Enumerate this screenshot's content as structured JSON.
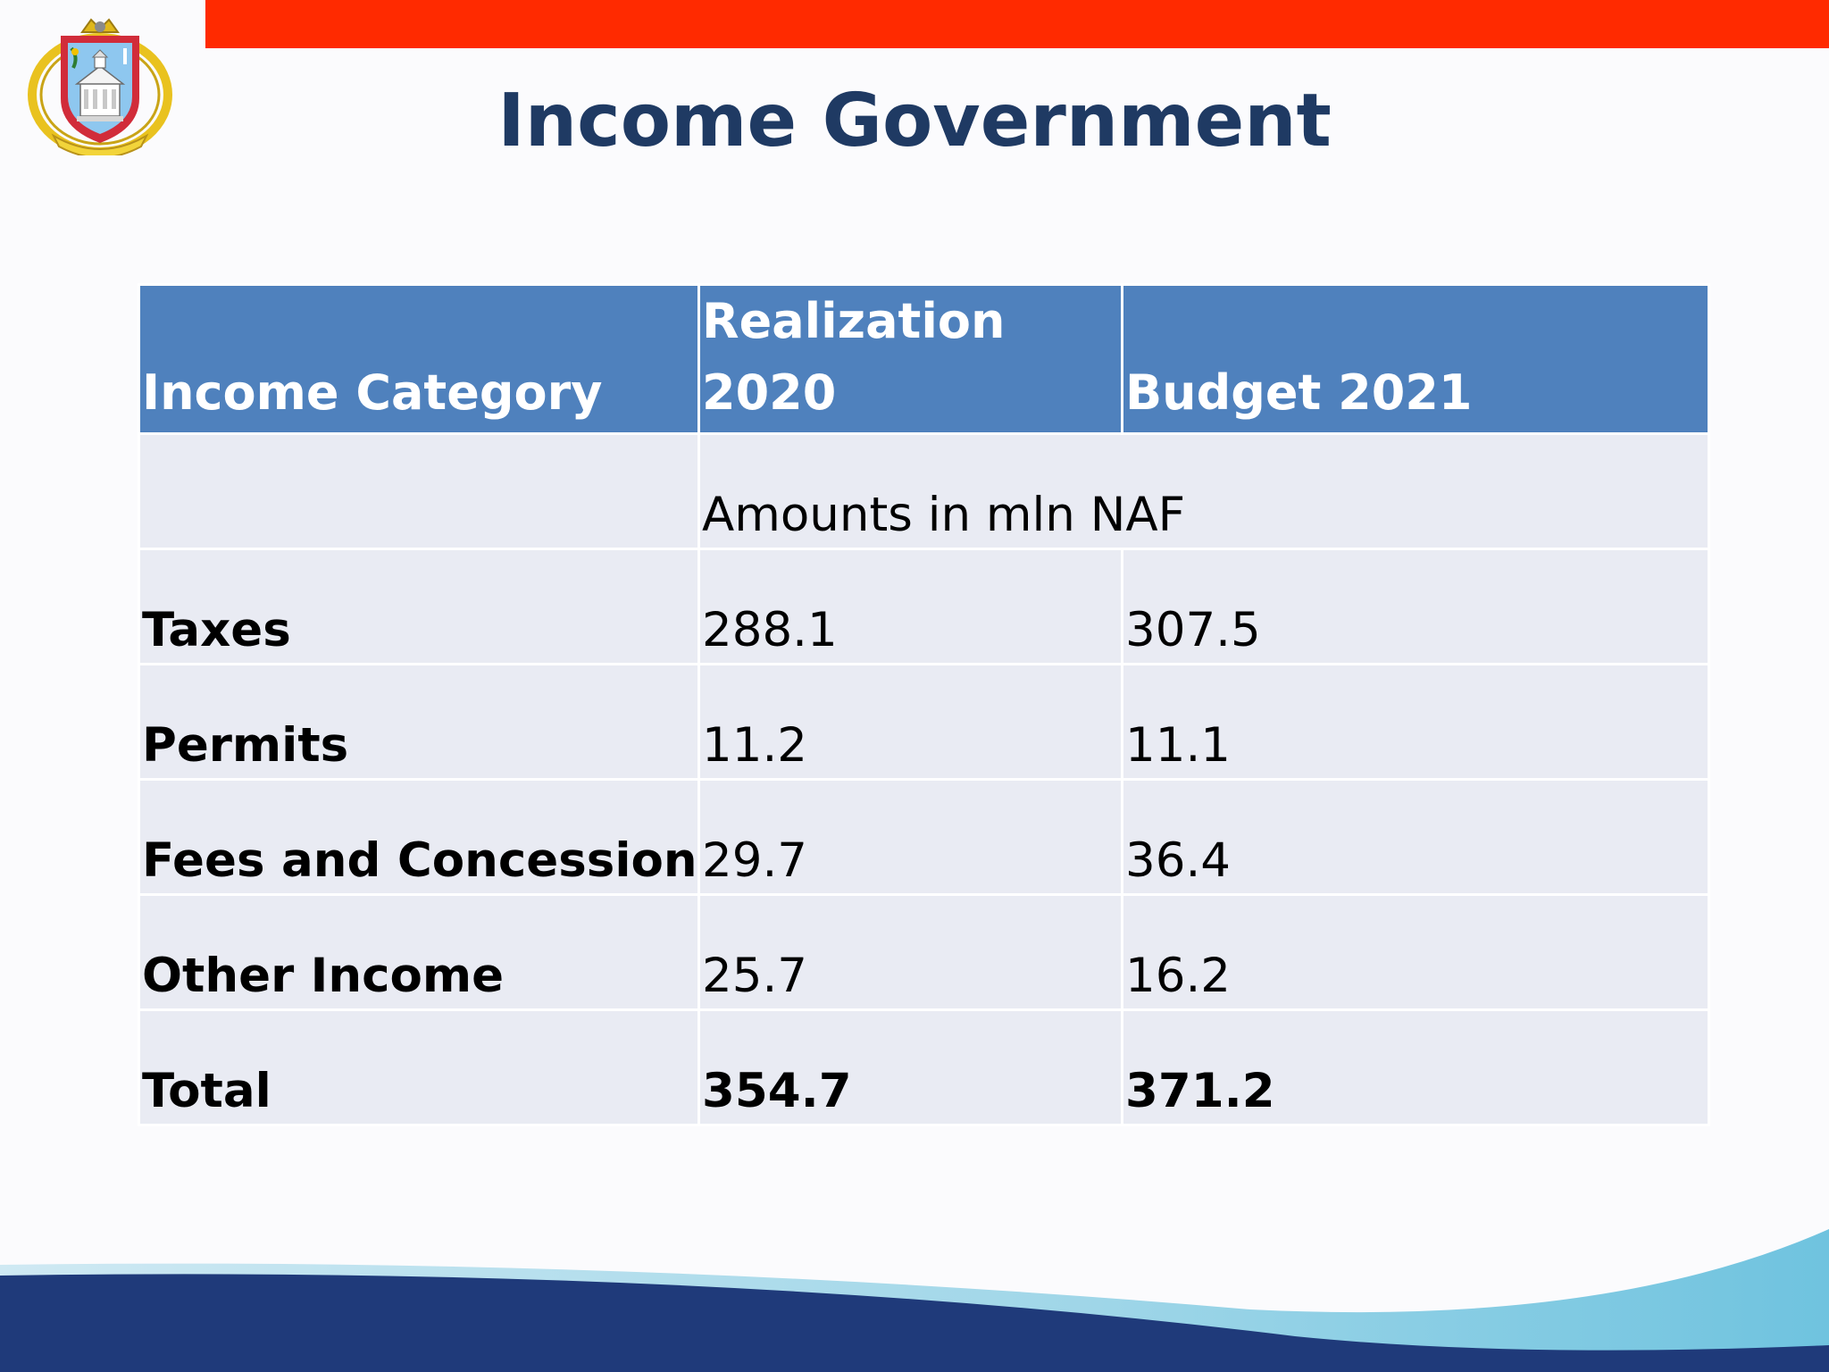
{
  "slide": {
    "title": "Income Government",
    "colors": {
      "top_bar": "#ff2a00",
      "title": "#1f3a63",
      "header_fill": "#4f81bd",
      "row_fill": "#e9ebf3",
      "wave_dark": "#1f3a7a",
      "wave_light": "#8fd0e6"
    },
    "logo": {
      "icon": "coat-of-arms-icon"
    }
  },
  "table": {
    "headers": {
      "category": "Income Category",
      "realization": "Realization 2020",
      "budget": "Budget 2021"
    },
    "units_note": "Amounts in mln NAF",
    "rows": [
      {
        "label": "Taxes",
        "realization": "288.1",
        "budget": "307.5"
      },
      {
        "label": "Permits",
        "realization": "11.2",
        "budget": "11.1"
      },
      {
        "label": "Fees and Concession",
        "realization": "29.7",
        "budget": "36.4"
      },
      {
        "label": "Other Income",
        "realization": "25.7",
        "budget": "16.2"
      },
      {
        "label": "Total",
        "realization": "354.7",
        "budget": "371.2"
      }
    ]
  }
}
